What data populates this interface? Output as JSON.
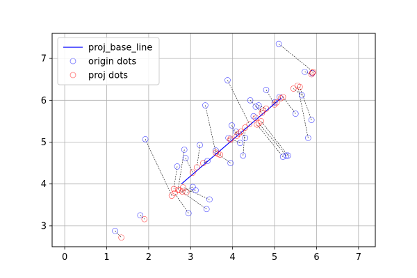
{
  "chart_data": {
    "type": "scatter",
    "xlim": [
      -0.3,
      7.4
    ],
    "ylim": [
      2.5,
      7.6
    ],
    "x_ticks": [
      0,
      1,
      2,
      3,
      4,
      5,
      6,
      7
    ],
    "y_ticks": [
      3,
      4,
      5,
      6,
      7
    ],
    "grid": true,
    "legend": {
      "placement": "top-left",
      "entries": [
        {
          "label": "proj_base_line",
          "marker": "line",
          "color": "#0000ff"
        },
        {
          "label": "origin dots",
          "marker": "circle",
          "color": "#0000ff"
        },
        {
          "label": "proj dots",
          "marker": "circle",
          "color": "#ff0000"
        }
      ]
    },
    "base_line": {
      "name": "proj_base_line",
      "color": "#0000ff",
      "points": [
        [
          2.78,
          4.0
        ],
        [
          5.15,
          6.05
        ]
      ]
    },
    "pairs": [
      {
        "origin": [
          1.2,
          2.88
        ],
        "proj": [
          1.35,
          2.72
        ]
      },
      {
        "origin": [
          1.8,
          3.25
        ],
        "proj": [
          1.9,
          3.16
        ]
      },
      {
        "origin": [
          1.92,
          5.07
        ],
        "proj": [
          2.55,
          3.72
        ]
      },
      {
        "origin": [
          2.95,
          3.3
        ],
        "proj": [
          2.62,
          3.78
        ]
      },
      {
        "origin": [
          3.38,
          3.4
        ],
        "proj": [
          2.74,
          3.85
        ]
      },
      {
        "origin": [
          3.45,
          3.63
        ],
        "proj": [
          2.82,
          3.92
        ]
      },
      {
        "origin": [
          2.68,
          4.42
        ],
        "proj": [
          2.6,
          3.88
        ]
      },
      {
        "origin": [
          2.85,
          4.82
        ],
        "proj": [
          2.7,
          3.86
        ]
      },
      {
        "origin": [
          2.88,
          4.62
        ],
        "proj": [
          3.05,
          4.27
        ]
      },
      {
        "origin": [
          3.05,
          3.93
        ],
        "proj": [
          2.8,
          3.82
        ]
      },
      {
        "origin": [
          3.12,
          3.85
        ],
        "proj": [
          2.9,
          3.8
        ]
      },
      {
        "origin": [
          3.22,
          4.93
        ],
        "proj": [
          3.15,
          4.4
        ]
      },
      {
        "origin": [
          3.35,
          5.88
        ],
        "proj": [
          3.6,
          4.75
        ]
      },
      {
        "origin": [
          3.4,
          4.55
        ],
        "proj": [
          3.3,
          4.5
        ]
      },
      {
        "origin": [
          3.6,
          4.8
        ],
        "proj": [
          3.7,
          4.7
        ]
      },
      {
        "origin": [
          3.88,
          6.48
        ],
        "proj": [
          4.4,
          5.43
        ]
      },
      {
        "origin": [
          3.9,
          5.1
        ],
        "proj": [
          3.95,
          5.05
        ]
      },
      {
        "origin": [
          3.95,
          4.5
        ],
        "proj": [
          3.65,
          4.72
        ]
      },
      {
        "origin": [
          3.98,
          5.4
        ],
        "proj": [
          4.1,
          5.15
        ]
      },
      {
        "origin": [
          4.08,
          5.25
        ],
        "proj": [
          4.15,
          5.2
        ]
      },
      {
        "origin": [
          4.18,
          4.98
        ],
        "proj": [
          3.95,
          5.08
        ]
      },
      {
        "origin": [
          4.25,
          4.68
        ],
        "proj": [
          4.3,
          5.35
        ]
      },
      {
        "origin": [
          4.3,
          5.1
        ],
        "proj": [
          4.2,
          5.25
        ]
      },
      {
        "origin": [
          4.42,
          6.0
        ],
        "proj": [
          4.7,
          5.7
        ]
      },
      {
        "origin": [
          4.5,
          5.62
        ],
        "proj": [
          4.55,
          5.58
        ]
      },
      {
        "origin": [
          4.55,
          5.85
        ],
        "proj": [
          4.72,
          5.75
        ]
      },
      {
        "origin": [
          4.62,
          5.88
        ],
        "proj": [
          4.8,
          5.8
        ]
      },
      {
        "origin": [
          4.8,
          6.25
        ],
        "proj": [
          5.0,
          5.9
        ]
      },
      {
        "origin": [
          5.0,
          5.95
        ],
        "proj": [
          5.05,
          5.95
        ]
      },
      {
        "origin": [
          5.1,
          7.35
        ],
        "proj": [
          5.92,
          6.68
        ]
      },
      {
        "origin": [
          5.12,
          6.08
        ],
        "proj": [
          5.15,
          6.05
        ]
      },
      {
        "origin": [
          5.2,
          4.65
        ],
        "proj": [
          4.58,
          5.42
        ]
      },
      {
        "origin": [
          5.28,
          4.68
        ],
        "proj": [
          4.62,
          5.45
        ]
      },
      {
        "origin": [
          5.32,
          4.68
        ],
        "proj": [
          4.68,
          5.5
        ]
      },
      {
        "origin": [
          5.5,
          5.68
        ],
        "proj": [
          5.2,
          6.08
        ]
      },
      {
        "origin": [
          5.65,
          6.12
        ],
        "proj": [
          5.45,
          6.28
        ]
      },
      {
        "origin": [
          5.72,
          6.68
        ],
        "proj": [
          5.88,
          6.62
        ]
      },
      {
        "origin": [
          5.8,
          5.1
        ],
        "proj": [
          5.55,
          6.35
        ]
      },
      {
        "origin": [
          5.88,
          5.53
        ],
        "proj": [
          5.6,
          6.32
        ]
      },
      {
        "origin": [
          5.9,
          6.65
        ],
        "proj": [
          5.9,
          6.66
        ]
      }
    ]
  }
}
